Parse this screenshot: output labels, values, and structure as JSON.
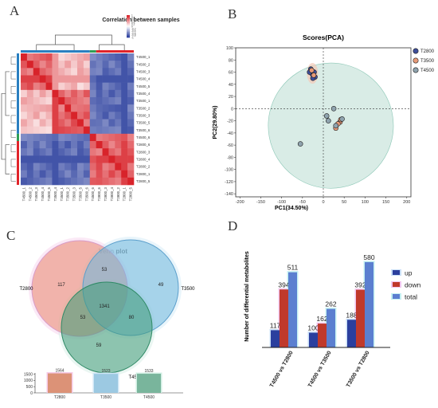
{
  "panels": {
    "a": "A",
    "b": "B",
    "c": "C",
    "d": "D"
  },
  "chart_data": [
    {
      "type": "heatmap",
      "title": "Correlation between samples",
      "row_labels": [
        "T4500_1",
        "T4500_2",
        "T4500_3",
        "T4500_4",
        "T4500_5",
        "T3500_4",
        "T3500_1",
        "T3500_2",
        "T3500_3",
        "T3500_5",
        "T3500_6",
        "T4500_6",
        "T2800_6",
        "T2800_3",
        "T2800_4",
        "T2800_2",
        "T2800_1",
        "T2800_5"
      ],
      "col_labels": [
        "T4500_1",
        "T4500_2",
        "T4500_3",
        "T4500_4",
        "T4500_5",
        "T3500_4",
        "T3500_1",
        "T3500_2",
        "T3500_3",
        "T3500_5",
        "T3500_6",
        "T4500_6",
        "T2800_6",
        "T2800_3",
        "T2800_4",
        "T2800_2",
        "T2800_1",
        "T2800_5"
      ],
      "group_sizes": [
        11,
        1,
        6
      ],
      "group_colors": [
        "#2a7fc0",
        "#2f9e55",
        "#e0242a"
      ],
      "legend_ticks": [
        "1",
        "0.8",
        "0.6",
        "0.4",
        "0.2",
        "0",
        "-0.2",
        "-0.4",
        "-0.6",
        "-0.8",
        "-1"
      ],
      "low_color": "#2b3f9e",
      "high_color": "#d8232a"
    },
    {
      "type": "scatter",
      "title": "Scores(PCA)",
      "xlabel": "PC1(34.50%)",
      "ylabel": "PC2(29.80%)",
      "xlim": [
        -210,
        210
      ],
      "ylim": [
        -145,
        100
      ],
      "xticks": [
        -200,
        -150,
        -100,
        -50,
        0,
        50,
        100,
        150,
        200
      ],
      "yticks": [
        100,
        80,
        60,
        40,
        20,
        0,
        -20,
        -40,
        -60,
        -80,
        -100,
        -120,
        -140
      ],
      "series": [
        {
          "name": "T2800",
          "color": "#3d4e9a",
          "points": [
            [
              -30,
              65
            ],
            [
              -27,
              57
            ],
            [
              -20,
              52
            ],
            [
              -25,
              50
            ],
            [
              -33,
              60
            ],
            [
              -22,
              60
            ]
          ]
        },
        {
          "name": "T3500",
          "color": "#e79a78",
          "points": [
            [
              -28,
              63
            ],
            [
              -23,
              55
            ],
            [
              30,
              -32
            ],
            [
              40,
              -22
            ],
            [
              35,
              -25
            ],
            [
              42,
              -18
            ]
          ]
        },
        {
          "name": "T4500",
          "color": "#8fa3ae",
          "points": [
            [
              25,
              0
            ],
            [
              8,
              -12
            ],
            [
              12,
              -20
            ],
            [
              45,
              -17
            ],
            [
              -55,
              -58
            ],
            [
              30,
              -28
            ]
          ]
        }
      ]
    },
    {
      "type": "venn",
      "title": "Venn plot",
      "sets": [
        "T2800",
        "T3500",
        "T4500"
      ],
      "regions": {
        "T2800_only": 117,
        "T3500_only": 49,
        "T4500_only": 59,
        "T2800_T3500": 53,
        "T2800_T4500": 53,
        "T3500_T4500": 80,
        "all": 1341
      },
      "totals_bar": {
        "categories": [
          "T2800",
          "T3500",
          "T4500"
        ],
        "values": [
          1564,
          1523,
          1533
        ],
        "yticks": [
          1500,
          1000,
          500,
          0
        ],
        "ylim": [
          0,
          1600
        ]
      }
    },
    {
      "type": "bar",
      "ylabel": "Number of differential metabolites",
      "categories": [
        "T4500 vs T2800",
        "T4500 vs T3500",
        "T3500 vs T2800"
      ],
      "series": [
        {
          "name": "up",
          "color": "#2b3f9e",
          "values": [
            117,
            100,
            188
          ]
        },
        {
          "name": "down",
          "color": "#c0392b",
          "values": [
            394,
            162,
            392
          ]
        },
        {
          "name": "total",
          "color": "#5b7fd0",
          "values": [
            511,
            262,
            580
          ]
        }
      ],
      "ylim": [
        0,
        650
      ]
    }
  ]
}
